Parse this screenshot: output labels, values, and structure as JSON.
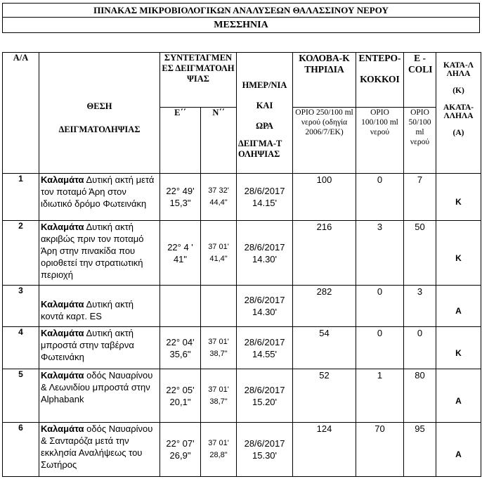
{
  "title": "ΠΙΝΑΚΑΣ ΜΙΚΡΟΒΙΟΛΟΓΙΚΩΝ ΑΝΑΛΥΣΕΩΝ ΘΑΛΑΣΣΙΝΟΥ ΝΕΡΟΥ",
  "region": "ΜΕΣΣΗΝΙΑ",
  "headers": {
    "aa": "Α/Α",
    "location": [
      "ΘΕΣΗ",
      "ΔΕΙΓΜΑΤΟΛΗΨΙΑΣ"
    ],
    "coords": "ΣΥΝΤΕΤΑΓΜΕΝΕΣ ΔΕΙΓΜΑΤΟΛΗΨΙΑΣ",
    "e": "Ε΄΄",
    "n": "Ν΄΄",
    "date": [
      "ΗΜΕΡ/ΝΙΑ",
      "ΚΑΙ",
      "ΩΡΑ",
      "ΔΕΙΓΜΑ-ΤΟΛΗΨΙΑΣ"
    ],
    "coliform": "ΚΟΛΟΒΑ-ΚΤΗΡΙΔΙΑ",
    "coliform_limit": "ΟΡΙΟ 250/100 ml νερού (οδηγία 2006/7/ΕΚ)",
    "enterococci": [
      "ΕΝΤΕΡΟ-",
      "ΚΟΚΚΟΙ"
    ],
    "enterococci_limit": "ΟΡΙΟ 100/100 ml νερού",
    "ecoli": "Ε - COLI",
    "ecoli_limit": "ΟΡΙΟ 50/100 ml νερού",
    "suitability": [
      "ΚΑΤΑ-ΛΛΗΛΑ",
      "(Κ)",
      "ΑΚΑΤΑ-ΛΛΗΛΑ",
      "(Α)"
    ]
  },
  "rows": [
    {
      "n": "1",
      "city": "Καλαμάτα",
      "desc": "Δυτική ακτή μετά τον ποταμό Άρη στον ιδιωτικό δρόμο Φωτεινάκη",
      "e": "22° 49' 15,3\"",
      "nc": "37 32' 44,4\"",
      "date": "28/6/2017",
      "time": "14.15'",
      "coli": "100",
      "ent": "0",
      "ecoli": "7",
      "res": "Κ"
    },
    {
      "n": "2",
      "city": "Καλαμάτα",
      "desc": "Δυτική ακτή ακριβώς πριν τον ποταμό Άρη στην πινακίδα που οριοθετεί την στρατιωτική περιοχή",
      "e": "22° 4 ' 41\"",
      "nc": "37 01' 41,4\"",
      "date": "28/6/2017",
      "time": "14.30'",
      "coli": "216",
      "ent": "3",
      "ecoli": "50",
      "res": "Κ"
    },
    {
      "n": "3",
      "city": "Καλαμάτα",
      "desc": "Δυτική ακτή κοντά καρτ. ES",
      "e": "",
      "nc": "",
      "date": "28/6/2017",
      "time": "14.30'",
      "coli": "282",
      "ent": "0",
      "ecoli": "3",
      "res": "Α"
    },
    {
      "n": "4",
      "city": "Καλαμάτα",
      "desc": "Δυτική ακτή μπροστά στην ταβέρνα Φωτεινάκη",
      "e": "22° 04' 35,6\"",
      "nc": "37 01' 38,7\"",
      "date": "28/6/2017",
      "time": "14.55'",
      "coli": "54",
      "ent": "0",
      "ecoli": "0",
      "res": "Κ"
    },
    {
      "n": "5",
      "city": "Καλαμάτα",
      "desc": "οδός Ναυαρίνου & Λεωνιδίου μπροστά στην Alphabank",
      "e": "22° 05' 20,1\"",
      "nc": "37 01' 38,7\"",
      "date": "28/6/2017",
      "time": "15.20'",
      "coli": "52",
      "ent": "1",
      "ecoli": "80",
      "res": "Α"
    },
    {
      "n": "6",
      "city": "Καλαμάτα",
      "desc": "οδός Ναυαρίνου & Σανταρόζα μετά την εκκλησία Αναλήψεως του Σωτήρος",
      "e": "22° 07' 26,9\"",
      "nc": "37 01' 28,8\"",
      "date": "28/6/2017",
      "time": "15.30'",
      "coli": "124",
      "ent": "70",
      "ecoli": "95",
      "res": "Α"
    }
  ]
}
